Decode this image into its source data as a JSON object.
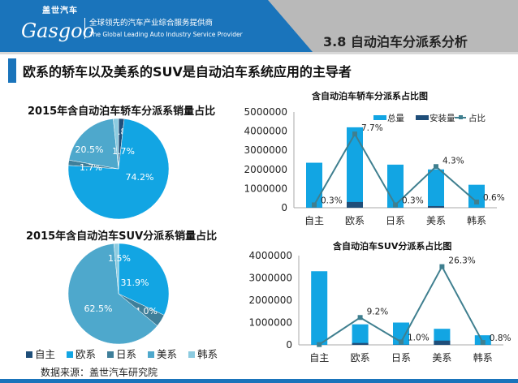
{
  "header": {
    "logo_cn": "盖世汽车",
    "logo_en": "Gasgoo",
    "slogan_cn": "全球领先的汽车产业综合服务提供商",
    "slogan_en": "The Global Leading Auto Industry Service Provider",
    "section_title": "3.8 自动泊车分派系分析"
  },
  "subtitle": "欧系的轿车以及美系的SUV是自动泊车系统应用的主导者",
  "legend": {
    "items": [
      {
        "label": "自主",
        "color": "#1f4e79"
      },
      {
        "label": "欧系",
        "color": "#12a5e3"
      },
      {
        "label": "日系",
        "color": "#3f7f9a"
      },
      {
        "label": "美系",
        "color": "#4ea8cc"
      },
      {
        "label": "韩系",
        "color": "#8ccbe0"
      }
    ]
  },
  "source": "数据来源：盖世汽车研究院",
  "chart_data": [
    {
      "type": "pie",
      "title": "2015年含自动泊车轿车分派系销量占比",
      "labels": [
        "自主",
        "欧系",
        "日系",
        "美系",
        "韩系"
      ],
      "values": [
        1.8,
        74.2,
        1.7,
        20.5,
        1.7
      ],
      "value_labels": [
        "1.8%",
        "74.2%",
        "1.7%",
        "20.5%",
        "1.7%"
      ]
    },
    {
      "type": "pie",
      "title": "2015年含自动泊车SUV分派系销量占比",
      "labels": [
        "自主",
        "欧系",
        "日系",
        "美系",
        "韩系"
      ],
      "values": [
        0.1,
        31.9,
        4.0,
        62.5,
        1.5
      ],
      "value_labels": [
        null,
        "31.9%",
        "4.0%",
        "62.5%",
        "1.5%"
      ]
    },
    {
      "type": "bar",
      "title": "含自动泊车轿车分派系占比图",
      "categories": [
        "自主",
        "欧系",
        "日系",
        "美系",
        "韩系"
      ],
      "ylim": [
        0,
        5000000
      ],
      "yticks": [
        "0",
        "1000000",
        "2000000",
        "3000000",
        "4000000",
        "5000000"
      ],
      "y2lim": [
        0,
        10
      ],
      "series": [
        {
          "name": "总量",
          "kind": "bar",
          "color": "#12a5e3",
          "values": [
            2350000,
            4200000,
            2250000,
            2000000,
            1200000
          ]
        },
        {
          "name": "安装量",
          "kind": "bar",
          "color": "#1f4e79",
          "values": [
            7000,
            300000,
            7000,
            86000,
            7000
          ]
        },
        {
          "name": "占比",
          "kind": "line",
          "color": "#3f7f8f",
          "values": [
            0.3,
            7.7,
            0.3,
            4.3,
            0.6
          ],
          "labels": [
            "0.3%",
            "7.7%",
            "0.3%",
            "4.3%",
            "0.6%"
          ]
        }
      ],
      "legend": "top-right"
    },
    {
      "type": "bar",
      "title": "含自动泊车SUV分派系占比图",
      "categories": [
        "自主",
        "欧系",
        "日系",
        "美系",
        "韩系"
      ],
      "ylim": [
        0,
        4000000
      ],
      "yticks": [
        "0",
        "1000000",
        "2000000",
        "3000000",
        "4000000"
      ],
      "y2lim": [
        0,
        30
      ],
      "series": [
        {
          "name": "总量",
          "kind": "bar",
          "color": "#12a5e3",
          "values": [
            3300000,
            920000,
            1000000,
            720000,
            430000
          ]
        },
        {
          "name": "安装量",
          "kind": "bar",
          "color": "#1f4e79",
          "values": [
            3000,
            85000,
            10000,
            190000,
            3500
          ]
        },
        {
          "name": "占比",
          "kind": "line",
          "color": "#3f7f8f",
          "values": [
            0.1,
            9.2,
            1.0,
            26.3,
            0.8
          ],
          "labels": [
            null,
            "9.2%",
            "1.0%",
            "26.3%",
            "0.8%"
          ]
        }
      ]
    }
  ]
}
